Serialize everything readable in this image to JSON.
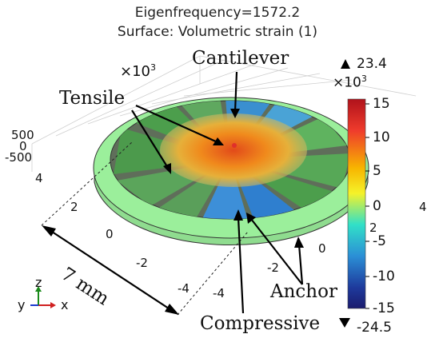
{
  "titles": {
    "line1": "Eigenfrequency=1572.2",
    "line2": "Surface: Volumetric strain (1)"
  },
  "axis_ticks": {
    "exp": "×10",
    "exp_sup": "3",
    "z": [
      "500",
      "0",
      "-500"
    ],
    "y": [
      "4",
      "2",
      "0",
      "-2",
      "-4"
    ],
    "x": [
      "-4",
      "-2",
      "0",
      "2",
      "4"
    ]
  },
  "annotations": {
    "cantilever": "Cantilever",
    "tensile": "Tensile",
    "compressive": "Compressive",
    "anchor": "Anchor",
    "dimension": "7 mm"
  },
  "colorbar": {
    "max": "23.4",
    "min": "-24.5",
    "exp": "×10",
    "exp_sup": "3",
    "ticks": [
      "15",
      "10",
      "5",
      "0",
      "-5",
      "-10",
      "-15"
    ],
    "colors": [
      "#b0121b",
      "#ef3b2c",
      "#f7b500",
      "#f5f229",
      "#31e0c8",
      "#2b8fd6",
      "#1e3a9c",
      "#1b1b6e"
    ]
  },
  "triad": {
    "y": "y",
    "z": "z",
    "x": "x"
  }
}
